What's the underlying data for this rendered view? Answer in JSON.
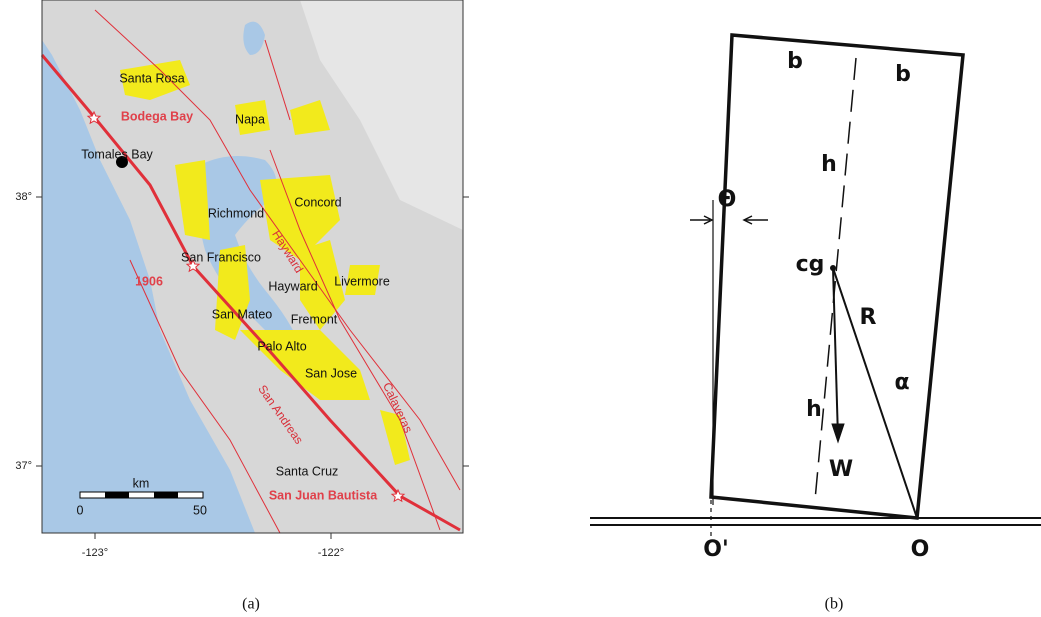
{
  "panel_a": {
    "cities": [
      "Santa Rosa",
      "Napa",
      "Tomales Bay",
      "Richmond",
      "Concord",
      "San Francisco",
      "Hayward",
      "Livermore",
      "San Mateo",
      "Fremont",
      "Palo Alto",
      "San Jose",
      "Santa Cruz"
    ],
    "epicenters": [
      "Bodega Bay",
      "1906",
      "San Juan Bautista"
    ],
    "faults": [
      "Hayward",
      "San Andreas",
      "Calaveras"
    ],
    "yticks": [
      "38°",
      "37°"
    ],
    "xticks": [
      "-123°",
      "-122°"
    ],
    "scale": {
      "unit": "km",
      "labels": [
        "0",
        "50"
      ]
    },
    "caption": "(a)"
  },
  "panel_b": {
    "labels": [
      "b",
      "b",
      "h",
      "Θ",
      "cg",
      "R",
      "α",
      "h",
      "W",
      "O'",
      "O"
    ],
    "caption": "(b)"
  }
}
